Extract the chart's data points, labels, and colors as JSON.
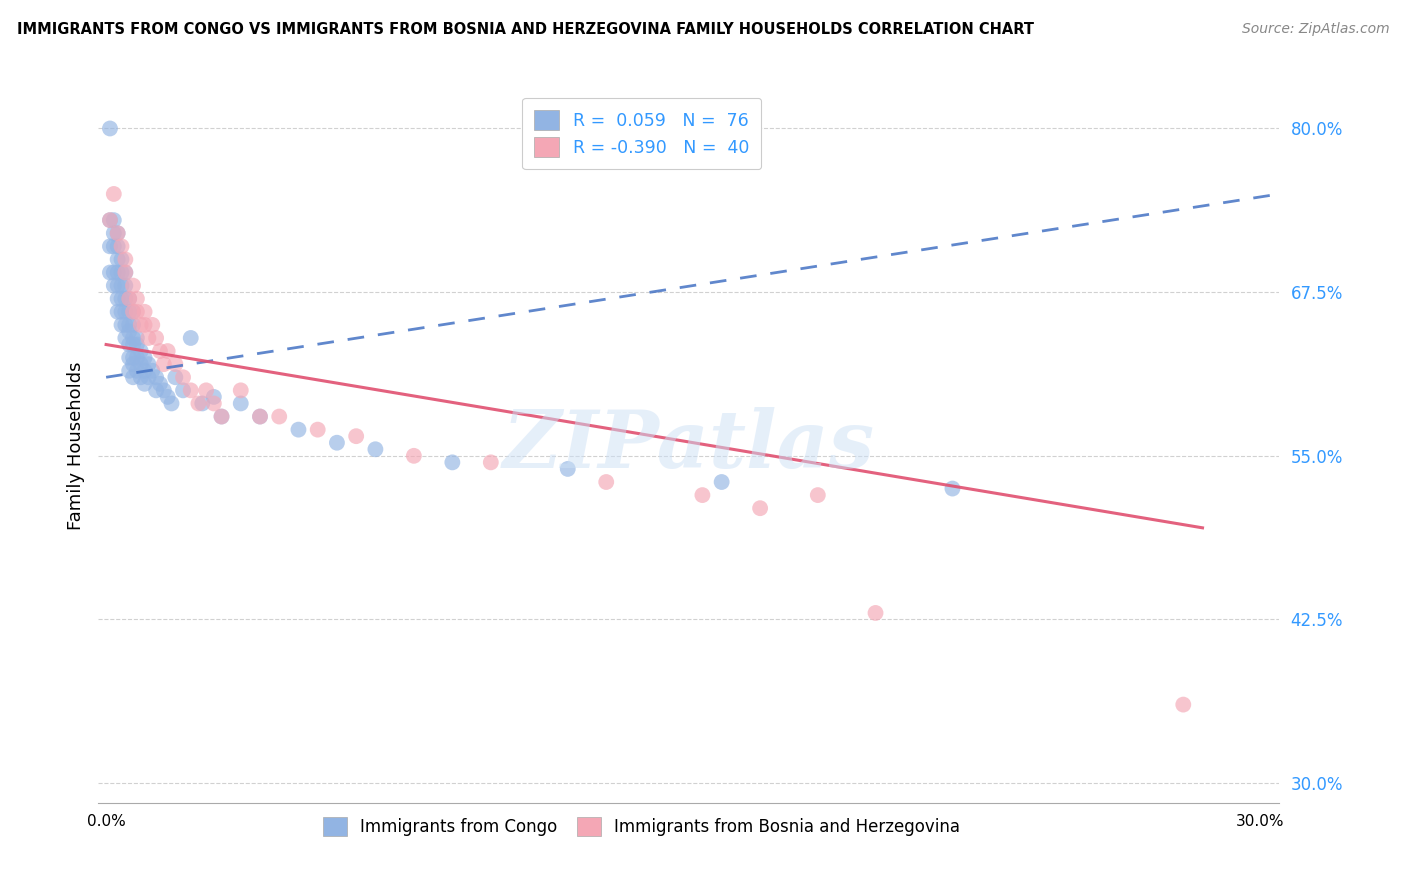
{
  "title": "IMMIGRANTS FROM CONGO VS IMMIGRANTS FROM BOSNIA AND HERZEGOVINA FAMILY HOUSEHOLDS CORRELATION CHART",
  "source": "Source: ZipAtlas.com",
  "ylabel": "Family Households",
  "yticks": [
    0.3,
    0.425,
    0.55,
    0.675,
    0.8
  ],
  "ytick_labels": [
    "30.0%",
    "42.5%",
    "55.0%",
    "67.5%",
    "80.0%"
  ],
  "xlim": [
    -0.002,
    0.305
  ],
  "ylim": [
    0.285,
    0.83
  ],
  "congo_color": "#92b4e3",
  "bosnia_color": "#f4a7b5",
  "congo_line_color": "#4472c4",
  "bosnia_line_color": "#e05070",
  "watermark": "ZIPatlas",
  "congo_x": [
    0.001,
    0.001,
    0.001,
    0.001,
    0.002,
    0.002,
    0.002,
    0.002,
    0.002,
    0.003,
    0.003,
    0.003,
    0.003,
    0.003,
    0.003,
    0.003,
    0.004,
    0.004,
    0.004,
    0.004,
    0.004,
    0.004,
    0.005,
    0.005,
    0.005,
    0.005,
    0.005,
    0.005,
    0.006,
    0.006,
    0.006,
    0.006,
    0.006,
    0.006,
    0.006,
    0.007,
    0.007,
    0.007,
    0.007,
    0.007,
    0.007,
    0.007,
    0.008,
    0.008,
    0.008,
    0.008,
    0.009,
    0.009,
    0.009,
    0.01,
    0.01,
    0.01,
    0.011,
    0.011,
    0.012,
    0.013,
    0.013,
    0.014,
    0.015,
    0.016,
    0.017,
    0.018,
    0.02,
    0.022,
    0.025,
    0.028,
    0.03,
    0.035,
    0.04,
    0.05,
    0.06,
    0.07,
    0.09,
    0.12,
    0.16,
    0.22
  ],
  "congo_y": [
    0.8,
    0.73,
    0.71,
    0.69,
    0.73,
    0.72,
    0.71,
    0.69,
    0.68,
    0.72,
    0.71,
    0.7,
    0.69,
    0.68,
    0.67,
    0.66,
    0.7,
    0.69,
    0.68,
    0.67,
    0.66,
    0.65,
    0.69,
    0.68,
    0.67,
    0.66,
    0.65,
    0.64,
    0.67,
    0.66,
    0.65,
    0.645,
    0.635,
    0.625,
    0.615,
    0.66,
    0.65,
    0.64,
    0.635,
    0.625,
    0.62,
    0.61,
    0.64,
    0.635,
    0.625,
    0.615,
    0.63,
    0.62,
    0.61,
    0.625,
    0.615,
    0.605,
    0.62,
    0.61,
    0.615,
    0.61,
    0.6,
    0.605,
    0.6,
    0.595,
    0.59,
    0.61,
    0.6,
    0.64,
    0.59,
    0.595,
    0.58,
    0.59,
    0.58,
    0.57,
    0.56,
    0.555,
    0.545,
    0.54,
    0.53,
    0.525
  ],
  "bosnia_x": [
    0.001,
    0.002,
    0.003,
    0.004,
    0.005,
    0.005,
    0.006,
    0.007,
    0.007,
    0.008,
    0.008,
    0.009,
    0.01,
    0.01,
    0.011,
    0.012,
    0.013,
    0.014,
    0.015,
    0.016,
    0.018,
    0.02,
    0.022,
    0.024,
    0.026,
    0.028,
    0.03,
    0.035,
    0.04,
    0.045,
    0.055,
    0.065,
    0.08,
    0.1,
    0.13,
    0.155,
    0.17,
    0.185,
    0.2,
    0.28
  ],
  "bosnia_y": [
    0.73,
    0.75,
    0.72,
    0.71,
    0.7,
    0.69,
    0.67,
    0.68,
    0.66,
    0.67,
    0.66,
    0.65,
    0.66,
    0.65,
    0.64,
    0.65,
    0.64,
    0.63,
    0.62,
    0.63,
    0.62,
    0.61,
    0.6,
    0.59,
    0.6,
    0.59,
    0.58,
    0.6,
    0.58,
    0.58,
    0.57,
    0.565,
    0.55,
    0.545,
    0.53,
    0.52,
    0.51,
    0.52,
    0.43,
    0.36
  ],
  "congo_line_x0": 0.0,
  "congo_line_x1": 0.305,
  "congo_line_y0": 0.61,
  "congo_line_y1": 0.75,
  "bosnia_line_x0": 0.0,
  "bosnia_line_x1": 0.285,
  "bosnia_line_y0": 0.635,
  "bosnia_line_y1": 0.495
}
